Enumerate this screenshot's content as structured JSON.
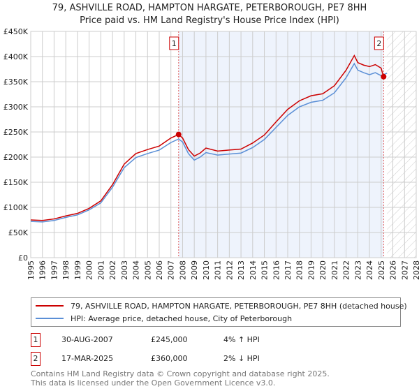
{
  "title": "79, ASHVILLE ROAD, HAMPTON HARGATE, PETERBOROUGH, PE7 8HH",
  "subtitle": "Price paid vs. HM Land Registry's House Price Index (HPI)",
  "chart_data": {
    "type": "line",
    "xlim": [
      1995,
      2028
    ],
    "ylim": [
      0,
      450000
    ],
    "yticks": [
      {
        "v": 0,
        "l": "£0"
      },
      {
        "v": 50000,
        "l": "£50K"
      },
      {
        "v": 100000,
        "l": "£100K"
      },
      {
        "v": 150000,
        "l": "£150K"
      },
      {
        "v": 200000,
        "l": "£200K"
      },
      {
        "v": 250000,
        "l": "£250K"
      },
      {
        "v": 300000,
        "l": "£300K"
      },
      {
        "v": 350000,
        "l": "£350K"
      },
      {
        "v": 400000,
        "l": "£400K"
      },
      {
        "v": 450000,
        "l": "£450K"
      }
    ],
    "xticks": [
      "1995",
      "1996",
      "1997",
      "1998",
      "1999",
      "2000",
      "2001",
      "2002",
      "2003",
      "2004",
      "2005",
      "2006",
      "2007",
      "2008",
      "2009",
      "2010",
      "2011",
      "2012",
      "2013",
      "2014",
      "2015",
      "2016",
      "2017",
      "2018",
      "2019",
      "2020",
      "2021",
      "2022",
      "2023",
      "2024",
      "2025",
      "2026",
      "2027",
      "2028"
    ],
    "series": [
      {
        "name": "79, ASHVILLE ROAD, HAMPTON HARGATE, PETERBOROUGH, PE7 8HH (detached house)",
        "color": "#cc0000",
        "x": [
          1995,
          1996,
          1997,
          1998,
          1999,
          2000,
          2001,
          2002,
          2003,
          2004,
          2005,
          2006,
          2007,
          2007.66,
          2008,
          2008.5,
          2009,
          2009.5,
          2010,
          2011,
          2012,
          2013,
          2014,
          2015,
          2016,
          2017,
          2018,
          2019,
          2020,
          2021,
          2022,
          2022.7,
          2023,
          2023.5,
          2024,
          2024.5,
          2025.0,
          2025.2
        ],
        "y": [
          75000,
          74000,
          77000,
          83000,
          88000,
          98000,
          113000,
          145000,
          186000,
          207000,
          215000,
          222000,
          238000,
          245000,
          238000,
          215000,
          202000,
          208000,
          218000,
          212000,
          214000,
          216000,
          228000,
          244000,
          270000,
          295000,
          312000,
          322000,
          326000,
          342000,
          373000,
          402000,
          388000,
          383000,
          380000,
          384000,
          377000,
          360000
        ]
      },
      {
        "name": "HPI: Average price, detached house, City of Peterborough",
        "color": "#5b8fd6",
        "x": [
          1995,
          1996,
          1997,
          1998,
          1999,
          2000,
          2001,
          2002,
          2003,
          2004,
          2005,
          2006,
          2007,
          2007.66,
          2008,
          2008.5,
          2009,
          2009.5,
          2010,
          2011,
          2012,
          2013,
          2014,
          2015,
          2016,
          2017,
          2018,
          2019,
          2020,
          2021,
          2022,
          2022.7,
          2023,
          2023.5,
          2024,
          2024.5,
          2025.0,
          2025.5
        ],
        "y": [
          72000,
          71000,
          74000,
          80000,
          85000,
          95000,
          109000,
          140000,
          179000,
          199000,
          207000,
          214000,
          229000,
          236000,
          230000,
          207000,
          194000,
          200000,
          209000,
          204000,
          206000,
          208000,
          219000,
          235000,
          259000,
          283000,
          300000,
          309000,
          313000,
          328000,
          358000,
          386000,
          373000,
          368000,
          364000,
          368000,
          362000,
          367000
        ]
      }
    ],
    "sales": [
      {
        "n": "1",
        "x": 2007.66,
        "y": 245000
      },
      {
        "n": "2",
        "x": 2025.21,
        "y": 360000
      }
    ],
    "shade_from": 2007.66,
    "shade_to": 2025.21,
    "hatch_from": 2025.5
  },
  "legend": {
    "red": "79, ASHVILLE ROAD, HAMPTON HARGATE, PETERBOROUGH, PE7 8HH (detached house)",
    "blue": "HPI: Average price, detached house, City of Peterborough"
  },
  "table": [
    {
      "n": "1",
      "date": "30-AUG-2007",
      "price": "£245,000",
      "hpi": "4% ↑ HPI"
    },
    {
      "n": "2",
      "date": "17-MAR-2025",
      "price": "£360,000",
      "hpi": "2% ↓ HPI"
    }
  ],
  "footer": [
    "Contains HM Land Registry data © Crown copyright and database right 2025.",
    "This data is licensed under the Open Government Licence v3.0."
  ]
}
